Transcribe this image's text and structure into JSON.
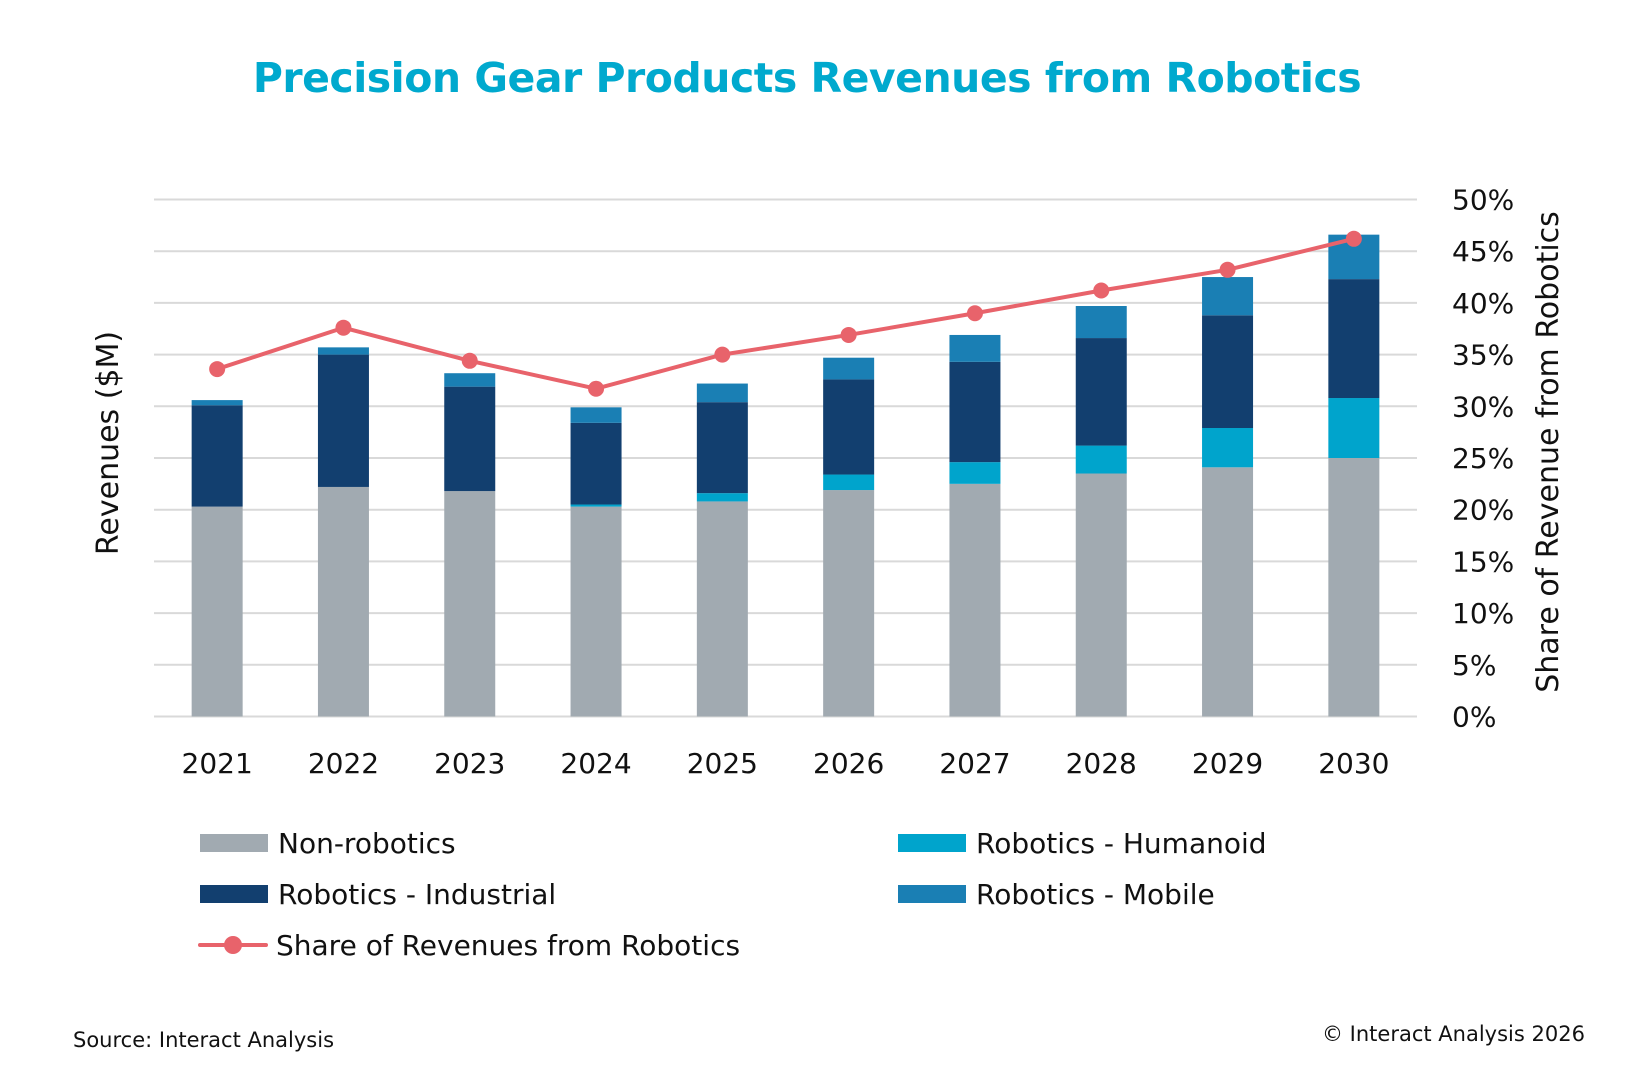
{
  "colors": {
    "title": "#00A9CE",
    "non_robotics": "#A1AAB1",
    "industrial": "#123F6F",
    "humanoid": "#00A4CC",
    "mobile": "#1A7FB4",
    "share_line": "#E8636B",
    "gridline": "#D9D9D9"
  },
  "footer": {
    "source": "Source: Interact Analysis",
    "copyright": "© Interact Analysis 2026"
  },
  "chart_data": {
    "type": "bar",
    "subtype": "stacked bar with line on secondary axis",
    "title": "Precision Gear Products Revenues from Robotics",
    "xlabel": "",
    "ylabel": "Revenues ($M)",
    "ylabel_right": "Share of Revenue from Robotics",
    "left_axis_tick_labels_shown": false,
    "left_axis_note": "Left axis has no numeric labels; bar values are estimated on the shared gridline scale (each gridline = 5 units).",
    "ylim": [
      0,
      50
    ],
    "ylim_right": [
      0,
      50
    ],
    "y_right_ticks": [
      "0%",
      "5%",
      "10%",
      "15%",
      "20%",
      "25%",
      "30%",
      "35%",
      "40%",
      "45%",
      "50%"
    ],
    "grid": true,
    "legend_position": "bottom",
    "categories": [
      "2021",
      "2022",
      "2023",
      "2024",
      "2025",
      "2026",
      "2027",
      "2028",
      "2029",
      "2030"
    ],
    "series": [
      {
        "name": "Non-robotics",
        "kind": "bar",
        "color_key": "non_robotics",
        "values": [
          20.3,
          22.2,
          21.8,
          20.3,
          20.8,
          21.9,
          22.5,
          23.5,
          24.1,
          25.0
        ]
      },
      {
        "name": "Robotics - Humanoid",
        "kind": "bar",
        "color_key": "humanoid",
        "values": [
          0,
          0,
          0,
          0.2,
          0.8,
          1.5,
          2.1,
          2.7,
          3.8,
          5.8
        ]
      },
      {
        "name": "Robotics - Industrial",
        "kind": "bar",
        "color_key": "industrial",
        "values": [
          9.8,
          12.8,
          10.1,
          7.9,
          8.8,
          9.2,
          9.7,
          10.4,
          10.9,
          11.5
        ]
      },
      {
        "name": "Robotics - Mobile",
        "kind": "bar",
        "color_key": "mobile",
        "values": [
          0.5,
          0.7,
          1.3,
          1.5,
          1.8,
          2.1,
          2.6,
          3.1,
          3.7,
          4.3
        ]
      },
      {
        "name": "Share of Revenues from Robotics",
        "kind": "line",
        "axis": "right",
        "unit": "%",
        "color_key": "share_line",
        "values": [
          33.6,
          37.6,
          34.4,
          31.7,
          35.0,
          36.9,
          39.0,
          41.2,
          43.2,
          46.2
        ]
      }
    ],
    "legend": [
      {
        "label": "Non-robotics",
        "color_key": "non_robotics",
        "type": "box"
      },
      {
        "label": "Robotics - Humanoid",
        "color_key": "humanoid",
        "type": "box"
      },
      {
        "label": "Robotics - Industrial",
        "color_key": "industrial",
        "type": "box"
      },
      {
        "label": "Robotics - Mobile",
        "color_key": "mobile",
        "type": "box"
      },
      {
        "label": "Share of Revenues from Robotics",
        "color_key": "share_line",
        "type": "line-marker"
      }
    ]
  }
}
